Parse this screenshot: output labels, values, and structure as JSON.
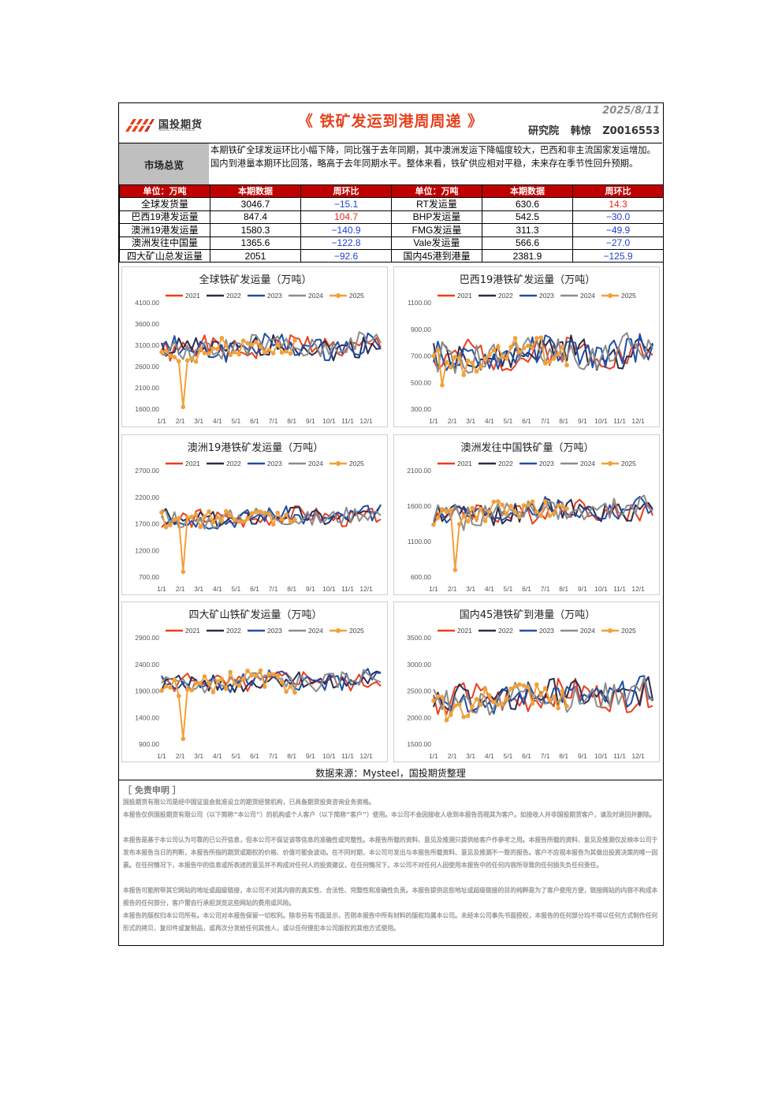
{
  "header": {
    "logo_cn": "国投期货",
    "logo_en": "SDIC FUTURES",
    "title": "《 铁矿发运到港周周递 》",
    "date": "2025/8/11",
    "author_dept": "研究院",
    "author_name": "韩惊",
    "author_id": "Z0016553"
  },
  "summary": {
    "label": "市场总览",
    "text": "本期铁矿全球发运环比小幅下降，同比强于去年同期，其中澳洲发运下降幅度较大，巴西和非主流国家发运增加。国内到港量本期环比回落，略高于去年同期水平。整体来看，铁矿供应相对平稳，未来存在季节性回升预期。"
  },
  "table": {
    "headers": [
      "单位：万吨",
      "本期数据",
      "周环比",
      "单位：万吨",
      "本期数据",
      "周环比"
    ],
    "rows": [
      [
        {
          "t": "全球发货量"
        },
        {
          "t": "3046.7"
        },
        {
          "t": "−15.1",
          "c": "neg"
        },
        {
          "t": "RT发运量"
        },
        {
          "t": "630.6"
        },
        {
          "t": "14.3",
          "c": "pos"
        }
      ],
      [
        {
          "t": "巴西19港发运量"
        },
        {
          "t": "847.4"
        },
        {
          "t": "104.7",
          "c": "pos"
        },
        {
          "t": "BHP发运量"
        },
        {
          "t": "542.5"
        },
        {
          "t": "−30.0",
          "c": "neg"
        }
      ],
      [
        {
          "t": "澳洲19港发运量"
        },
        {
          "t": "1580.3"
        },
        {
          "t": "−140.9",
          "c": "neg"
        },
        {
          "t": "FMG发运量"
        },
        {
          "t": "311.3"
        },
        {
          "t": "−49.9",
          "c": "neg"
        }
      ],
      [
        {
          "t": "澳洲发往中国量"
        },
        {
          "t": "1365.6"
        },
        {
          "t": "−122.8",
          "c": "neg"
        },
        {
          "t": "Vale发运量"
        },
        {
          "t": "566.6"
        },
        {
          "t": "−27.0",
          "c": "neg"
        }
      ],
      [
        {
          "t": "四大矿山总发运量"
        },
        {
          "t": "2051"
        },
        {
          "t": "−92.6",
          "c": "neg"
        },
        {
          "t": "国内45港到港量"
        },
        {
          "t": "2381.9"
        },
        {
          "t": "−125.9",
          "c": "neg"
        }
      ]
    ]
  },
  "series_meta": [
    {
      "name": "2021",
      "color": "#e8401c"
    },
    {
      "name": "2022",
      "color": "#2b2b4f"
    },
    {
      "name": "2023",
      "color": "#1f4fa8"
    },
    {
      "name": "2024",
      "color": "#8c8c8c"
    },
    {
      "name": "2025",
      "color": "#f2a03a"
    }
  ],
  "chart_data": [
    {
      "type": "line",
      "title": "全球铁矿发运量（万吨）",
      "ylim": [
        1600,
        4100
      ],
      "yticks": [
        "4100.00",
        "3600.00",
        "3100.00",
        "2600.00",
        "2100.00",
        "1600.00"
      ],
      "categories": [
        "1/1",
        "2/1",
        "3/1",
        "4/1",
        "5/1",
        "6/1",
        "7/1",
        "8/1",
        "9/1",
        "10/1",
        "11/1",
        "12/1"
      ],
      "base": 3000,
      "amp": 260,
      "seed": 1,
      "dip": 1650,
      "dipWeek": 5
    },
    {
      "type": "line",
      "title": "巴西19港铁矿发运量（万吨）",
      "ylim": [
        300,
        1100
      ],
      "yticks": [
        "1100.00",
        "900.00",
        "700.00",
        "500.00",
        "300.00"
      ],
      "categories": [
        "1/1",
        "2/1",
        "3/1",
        "4/1",
        "5/1",
        "6/1",
        "7/1",
        "8/1",
        "9/1",
        "10/1",
        "11/1",
        "12/1"
      ],
      "base": 700,
      "amp": 110,
      "seed": 2,
      "dip": 480,
      "dipWeek": 2
    },
    {
      "type": "line",
      "title": "澳洲19港铁矿发运量（万吨）",
      "ylim": [
        700,
        2700
      ],
      "yticks": [
        "2700.00",
        "2200.00",
        "1700.00",
        "1200.00",
        "700.00"
      ],
      "categories": [
        "1/1",
        "2/1",
        "3/1",
        "4/1",
        "5/1",
        "6/1",
        "7/1",
        "8/1",
        "9/1",
        "10/1",
        "11/1",
        "12/1"
      ],
      "base": 1800,
      "amp": 160,
      "seed": 3,
      "dip": 800,
      "dipWeek": 5
    },
    {
      "type": "line",
      "title": "澳洲发往中国铁矿量（万吨）",
      "ylim": [
        600,
        2100
      ],
      "yticks": [
        "2100.00",
        "1600.00",
        "1100.00",
        "600.00"
      ],
      "categories": [
        "1/1",
        "2/1",
        "3/1",
        "4/1",
        "5/1",
        "6/1",
        "7/1",
        "8/1",
        "9/1",
        "10/1",
        "11/1",
        "12/1"
      ],
      "base": 1500,
      "amp": 150,
      "seed": 4,
      "dip": 700,
      "dipWeek": 5
    },
    {
      "type": "line",
      "title": "四大矿山铁矿发运量（万吨）",
      "ylim": [
        900,
        2900
      ],
      "yticks": [
        "2900.00",
        "2400.00",
        "1900.00",
        "1400.00",
        "900.00"
      ],
      "categories": [
        "1/1",
        "2/1",
        "3/1",
        "4/1",
        "5/1",
        "6/1",
        "7/1",
        "8/1",
        "9/1",
        "10/1",
        "11/1",
        "12/1"
      ],
      "base": 2050,
      "amp": 170,
      "seed": 5,
      "dip": 1000,
      "dipWeek": 5
    },
    {
      "type": "line",
      "title": "国内45港铁矿到港量（万吨）",
      "ylim": [
        1500,
        3500
      ],
      "yticks": [
        "3500.00",
        "3000.00",
        "2500.00",
        "2000.00",
        "1500.00"
      ],
      "categories": [
        "1/1",
        "2/1",
        "3/1",
        "4/1",
        "5/1",
        "6/1",
        "7/1",
        "8/1",
        "9/1",
        "10/1",
        "11/1",
        "12/1"
      ],
      "base": 2350,
      "amp": 260,
      "seed": 6,
      "dip": 1950,
      "dipWeek": 3
    }
  ],
  "source": "数据来源：Mysteel，国投期货整理",
  "disclaimer": {
    "heading": "［ 免责申明 ］",
    "paragraphs": [
      "国投期货有限公司是经中国证监会批准设立的期货经营机构，已具备期货投资咨询业务资格。",
      "本报告仅供国投期货有限公司（以下简称“本公司”）的机构或个人客户（以下简称“客户”）使用。本公司不会因接收人收到本报告而视其为客户。如接收人并非国投期货客户，请及时退回并删除。",
      "本报告是基于本公司认为可靠的已公开信息，但本公司不保证该等信息的准确性或完整性。本报告所载的资料、意见及推测只提供给客户作参考之用。本报告所载的资料、意见及推测仅反映本公司于发布本报告当日的判断，本报告所指的期货或期权的价格、价值可能会波动。在不同时期，本公司可发出与本报告所载资料、意见及推测不一致的报告。客户不应视本报告为其做出投资决策的唯一因素。在任何情况下，本报告中的信息或所表述的意见并不构成对任何人的投资建议，在任何情况下，本公司不对任何人因使用本报告中的任何内容所导致的任何损失负任何责任。",
      "本报告可能附带其它网站的地址或超级链接，本公司不对其内容的真实性、合法性、完整性和准确性负责。本报告提供这些地址或超级链接的目的纯粹是为了客户使用方便，链接网站的内容不构成本报告的任何部分，客户需自行承担浏览这些网站的费用或风险。",
      "本报告的版权归本公司所有。本公司对本报告保留一切权利。除非另有书面显示，否则本报告中所有材料的版权均属本公司。未经本公司事先书面授权，本报告的任何部分均不得以任何方式制作任何形式的拷贝、复印件或复制品，或再次分发给任何其他人，或以任何侵犯本公司版权的其他方式使用。"
    ]
  }
}
